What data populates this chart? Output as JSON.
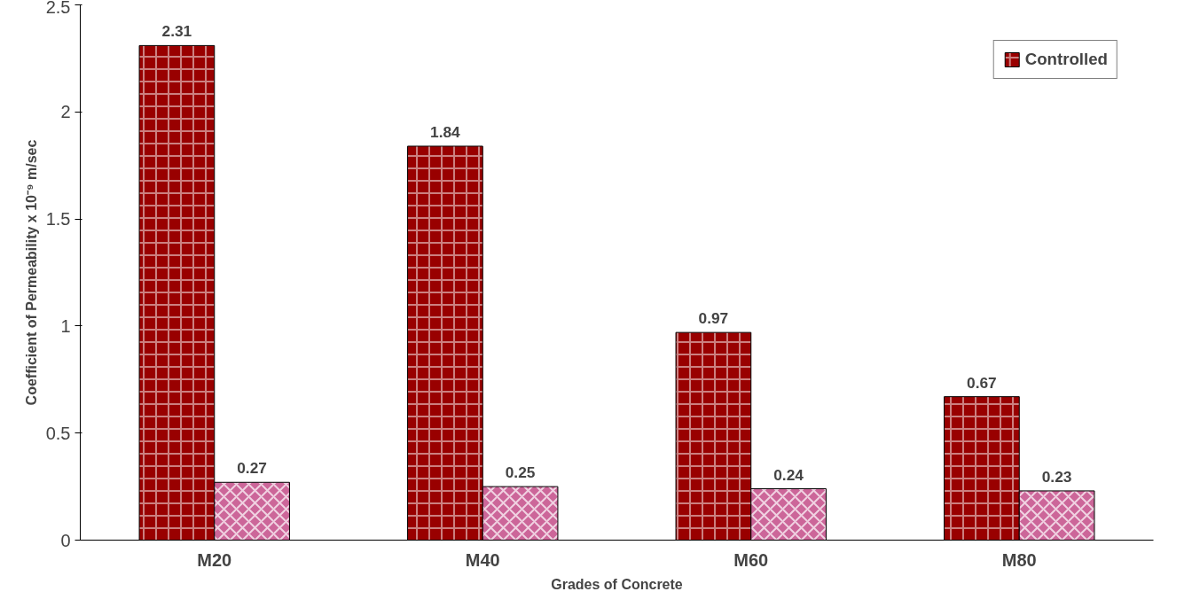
{
  "chart_data": {
    "type": "bar",
    "categories": [
      "M20",
      "M40",
      "M60",
      "M80"
    ],
    "series": [
      {
        "name": "Controlled",
        "color": "#990000",
        "values": [
          2.31,
          1.84,
          0.97,
          0.67
        ]
      },
      {
        "color": "#cc6699",
        "values": [
          0.27,
          0.25,
          0.24,
          0.23
        ]
      }
    ],
    "xlabel": "Grades of Concrete",
    "ylabel": "Coefficient of Permeability x 10⁻⁹ m/sec",
    "ylim": [
      0,
      2.5
    ],
    "yticks": [
      0,
      0.5,
      1,
      1.5,
      2,
      2.5
    ],
    "data_labels": true,
    "legend": "top right",
    "grid": false
  }
}
